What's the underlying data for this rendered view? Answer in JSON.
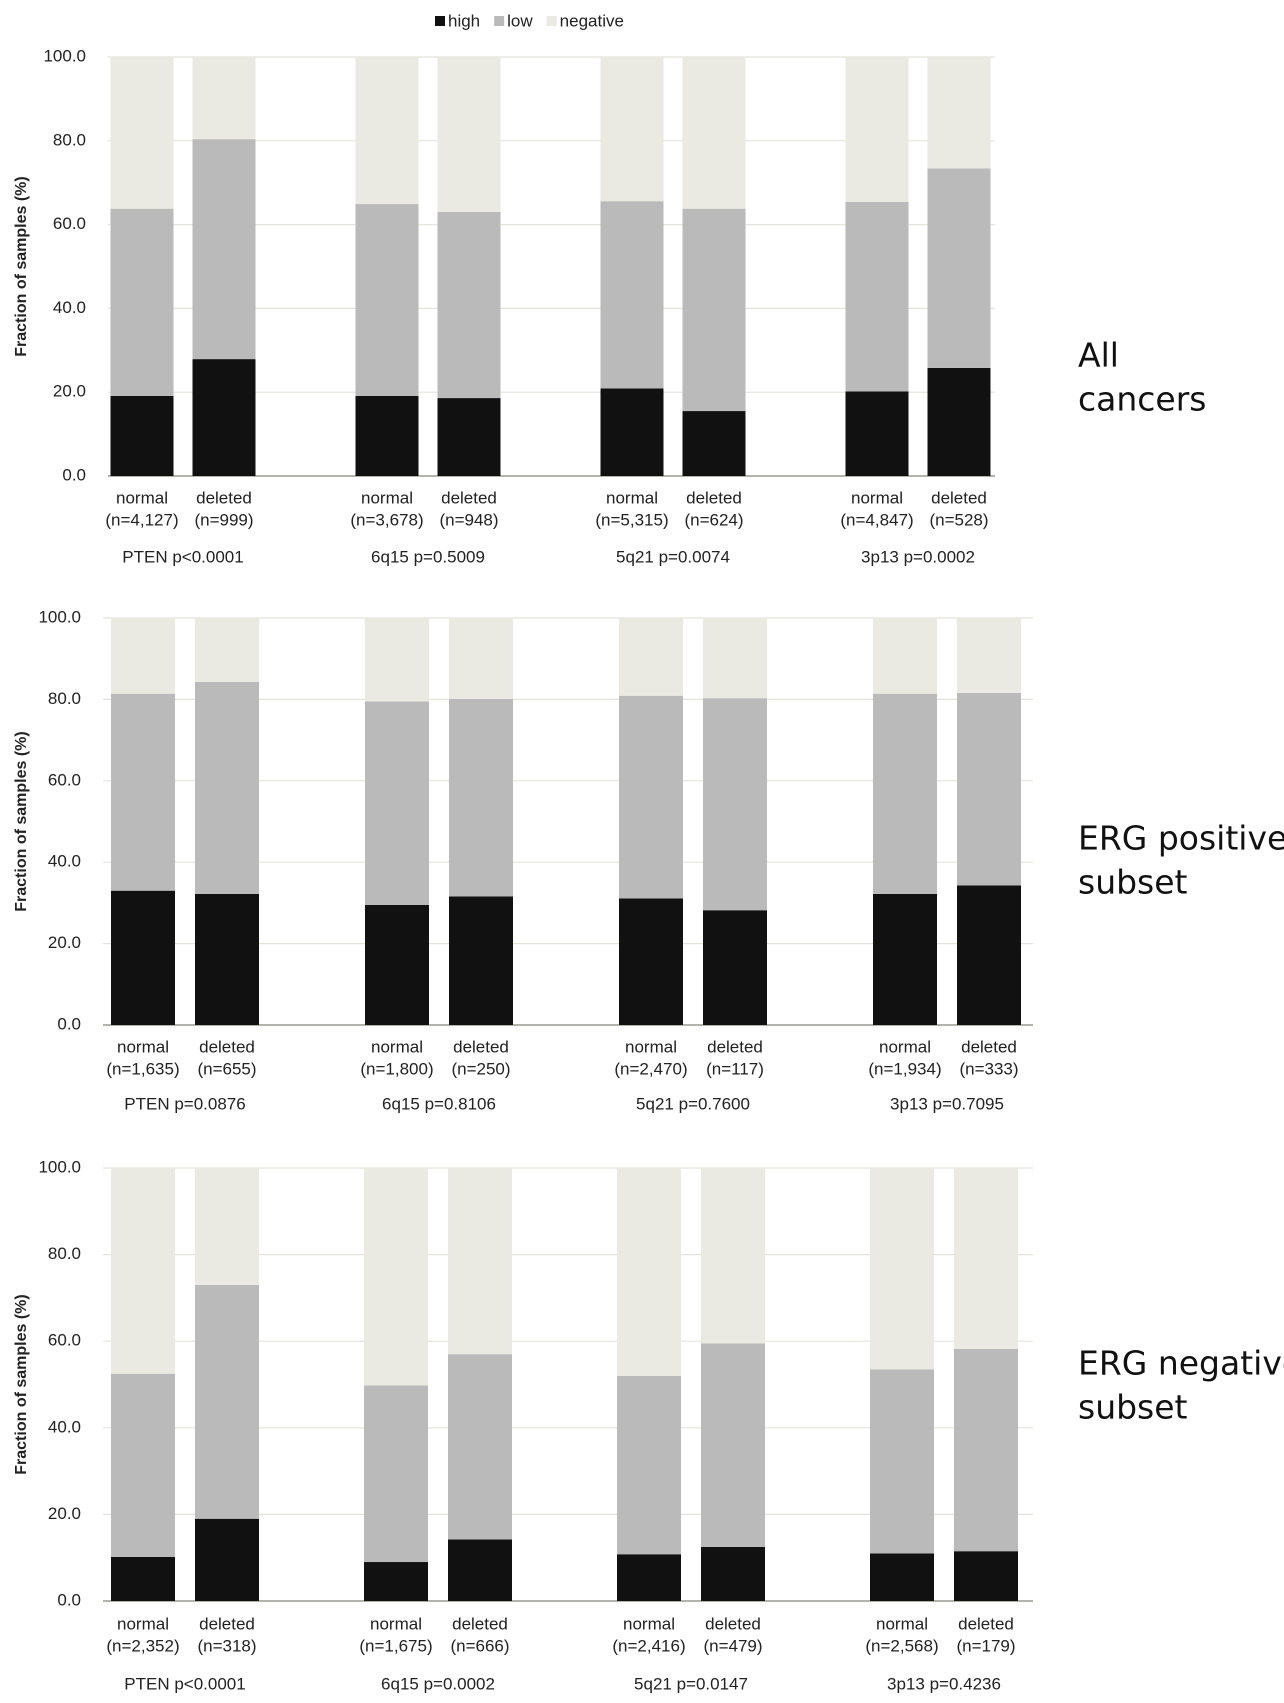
{
  "chart_data": [
    {
      "type": "stacked_bar",
      "legend": "top",
      "y_label": "Fraction of samples (%)",
      "panel_label": [
        "All",
        "cancers"
      ],
      "categories": [
        "normal",
        "deleted",
        "normal",
        "deleted",
        "normal",
        "deleted",
        "normal",
        "deleted"
      ],
      "category_counts": [
        "(n=4,127)",
        "(n=999)",
        "(n=3,678)",
        "(n=948)",
        "(n=5,315)",
        "(n=624)",
        "(n=4,847)",
        "(n=528)"
      ],
      "groups": [
        "PTEN p<0.0001",
        "6q15 p=0.5009",
        "5q21 p=0.0074",
        "3p13 p=0.0002"
      ],
      "ylim": [
        0,
        100
      ],
      "yticks": [
        {
          "value": 0,
          "label": "0.0"
        },
        {
          "value": 20,
          "label": "20.0"
        },
        {
          "value": 40,
          "label": "40.0"
        },
        {
          "value": 60,
          "label": "60.0"
        },
        {
          "value": 80,
          "label": "80.0"
        },
        {
          "value": 100,
          "label": "100.0"
        }
      ],
      "grid": true,
      "series": [
        {
          "name": "high",
          "color": "#111111",
          "values": [
            19.1,
            27.9,
            19.1,
            18.6,
            20.9,
            15.5,
            20.2,
            25.8
          ]
        },
        {
          "name": "low",
          "color": "#bababa",
          "values": [
            44.7,
            52.5,
            45.8,
            44.4,
            44.7,
            48.3,
            45.2,
            47.6
          ]
        },
        {
          "name": "negative",
          "color": "#eae9e2",
          "values": [
            36.2,
            19.6,
            35.1,
            37.0,
            34.4,
            36.2,
            34.6,
            26.6
          ]
        }
      ]
    },
    {
      "type": "stacked_bar",
      "y_label": "Fraction of samples (%)",
      "panel_label": [
        "ERG positive",
        "subset"
      ],
      "categories": [
        "normal",
        "deleted",
        "normal",
        "deleted",
        "normal",
        "deleted",
        "normal",
        "deleted"
      ],
      "category_counts": [
        "(n=1,635)",
        "(n=655)",
        "(n=1,800)",
        "(n=250)",
        "(n=2,470)",
        "(n=117)",
        "(n=1,934)",
        "(n=333)"
      ],
      "groups": [
        "PTEN p=0.0876",
        "6q15 p=0.8106",
        "5q21 p=0.7600",
        "3p13 p=0.7095"
      ],
      "ylim": [
        0,
        100
      ],
      "yticks": [
        {
          "value": 0,
          "label": "0.0"
        },
        {
          "value": 20,
          "label": "20.0"
        },
        {
          "value": 40,
          "label": "40.0"
        },
        {
          "value": 60,
          "label": "60.0"
        },
        {
          "value": 80,
          "label": "80.0"
        },
        {
          "value": 100,
          "label": "100.0"
        }
      ],
      "grid": true,
      "series": [
        {
          "color": "#111111",
          "values": [
            33.0,
            32.2,
            29.5,
            31.6,
            31.1,
            28.2,
            32.2,
            34.3
          ]
        },
        {
          "color": "#bababa",
          "values": [
            48.4,
            52.1,
            50.0,
            48.5,
            49.8,
            52.1,
            49.2,
            47.3
          ]
        },
        {
          "color": "#eae9e2",
          "values": [
            18.6,
            15.7,
            20.5,
            19.9,
            19.1,
            19.7,
            18.6,
            18.4
          ]
        }
      ]
    },
    {
      "type": "stacked_bar",
      "y_label": "Fraction of samples (%)",
      "panel_label": [
        "ERG negative",
        "subset"
      ],
      "categories": [
        "normal",
        "deleted",
        "normal",
        "deleted",
        "normal",
        "deleted",
        "normal",
        "deleted"
      ],
      "category_counts": [
        "(n=2,352)",
        "(n=318)",
        "(n=1,675)",
        "(n=666)",
        "(n=2,416)",
        "(n=479)",
        "(n=2,568)",
        "(n=179)"
      ],
      "groups": [
        "PTEN p<0.0001",
        "6q15 p=0.0002",
        "5q21 p=0.0147",
        "3p13 p=0.4236"
      ],
      "ylim": [
        0,
        100
      ],
      "yticks": [
        {
          "value": 0,
          "label": "0.0"
        },
        {
          "value": 20,
          "label": "20.0"
        },
        {
          "value": 40,
          "label": "40.0"
        },
        {
          "value": 60,
          "label": "60.0"
        },
        {
          "value": 80,
          "label": "80.0"
        },
        {
          "value": 100,
          "label": "100.0"
        }
      ],
      "grid": true,
      "series": [
        {
          "color": "#111111",
          "values": [
            10.2,
            19.0,
            9.0,
            14.2,
            10.8,
            12.5,
            11.0,
            11.5
          ]
        },
        {
          "color": "#bababa",
          "values": [
            42.3,
            54.0,
            40.8,
            42.8,
            41.2,
            47.0,
            42.5,
            46.7
          ]
        },
        {
          "color": "#eae9e2",
          "values": [
            47.5,
            27.0,
            50.2,
            43.0,
            48.0,
            40.5,
            46.5,
            41.8
          ]
        }
      ]
    }
  ]
}
